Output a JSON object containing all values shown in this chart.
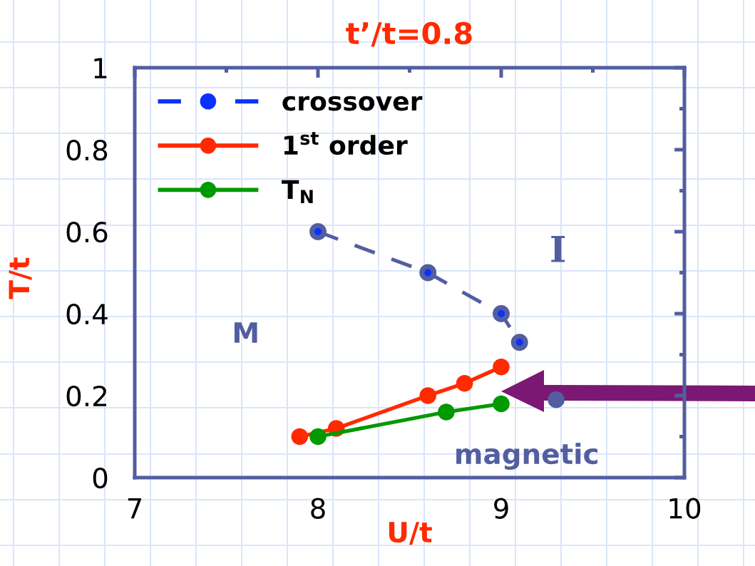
{
  "chart_data": {
    "type": "line",
    "title": "t’/t=0.8",
    "xlabel": "U/t",
    "ylabel": "T/t",
    "xlim": [
      7,
      10
    ],
    "xticks": [
      7,
      8,
      9,
      10
    ],
    "ylim": [
      0,
      1
    ],
    "yticks": [
      0,
      0.2,
      0.4,
      0.6,
      0.8,
      1
    ],
    "marker": "circle",
    "legend": "top left",
    "series": [
      {
        "name": "crossover",
        "color": "#0a32ff",
        "line_style": "dashed",
        "x": [
          8.0,
          8.6,
          9.0,
          9.1
        ],
        "values": [
          0.6,
          0.5,
          0.4,
          0.33
        ]
      },
      {
        "name": "1$^{st}$ order",
        "color": "#ff2a00",
        "line_style": "solid",
        "x": [
          7.9,
          8.1,
          8.6,
          8.8,
          9.0
        ],
        "values": [
          0.1,
          0.12,
          0.2,
          0.23,
          0.27
        ]
      },
      {
        "name": "T$_{N}$",
        "color": "#009900",
        "line_style": "solid",
        "x": [
          8.0,
          8.7,
          9.0
        ],
        "values": [
          0.1,
          0.16,
          0.18
        ]
      },
      {
        "type": "scatter",
        "color": "#525ea0",
        "x": [
          9.3
        ],
        "values": [
          0.19
        ]
      }
    ],
    "annotations": [
      "M",
      "I",
      "magnetic"
    ]
  }
}
